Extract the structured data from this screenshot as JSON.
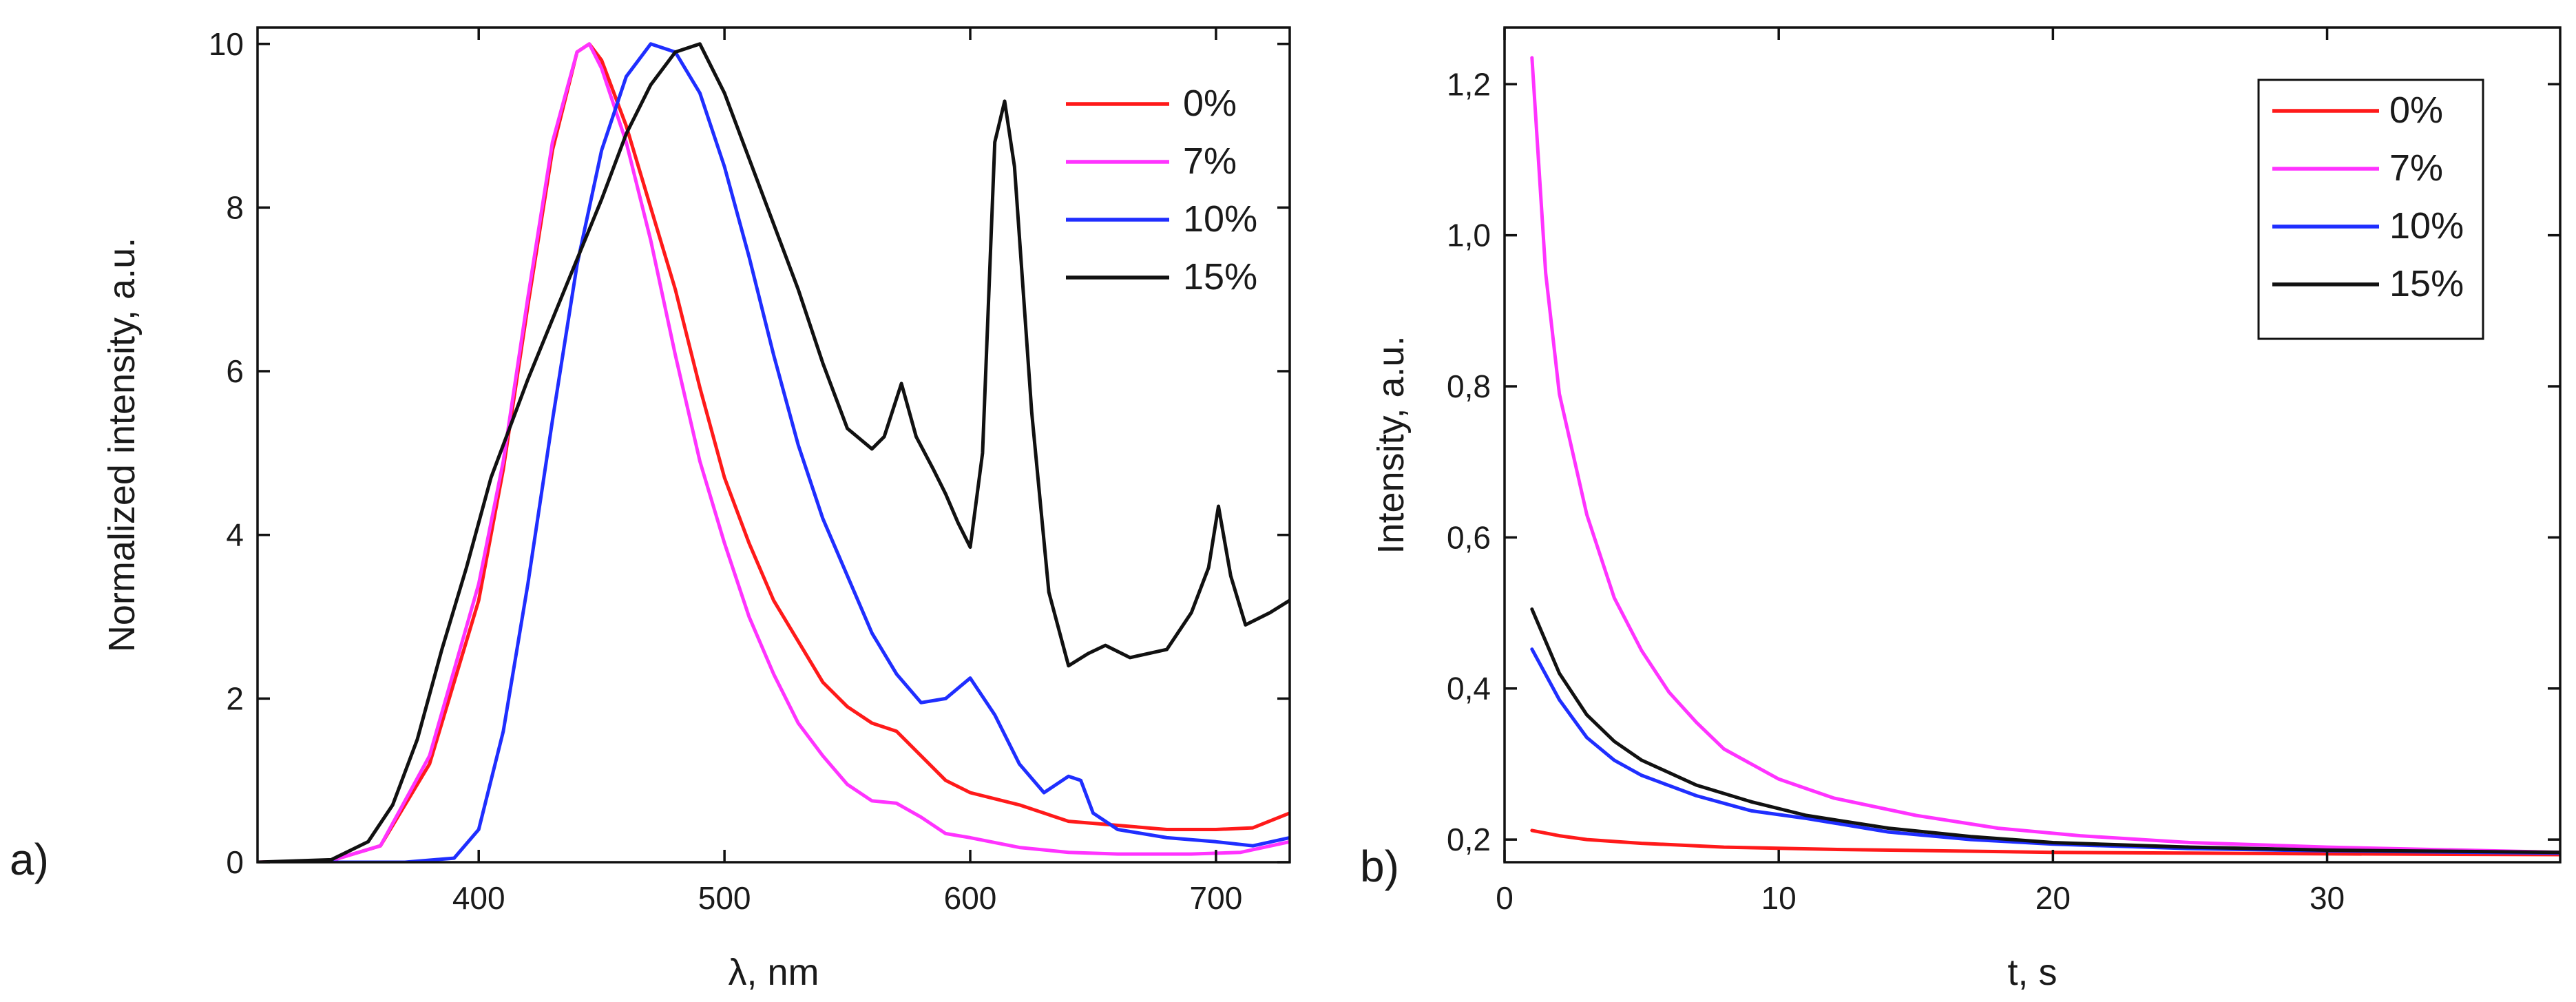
{
  "chart_data": [
    {
      "panel": "a)",
      "type": "line",
      "title": "",
      "xlabel": "λ, nm",
      "ylabel": "Normalized intensity, a.u.",
      "xlim": [
        310,
        730
      ],
      "ylim": [
        0,
        10.2
      ],
      "xticks": [
        400,
        500,
        600,
        700
      ],
      "yticks": [
        0,
        2,
        4,
        6,
        8,
        10
      ],
      "xtick_labels": [
        "400",
        "500",
        "600",
        "700"
      ],
      "ytick_labels": [
        "0",
        "2",
        "4",
        "6",
        "8",
        "10"
      ],
      "legend": "top-right",
      "series": [
        {
          "name": "0%",
          "color": "#ff1a1a",
          "points": [
            [
              310,
              0
            ],
            [
              340,
              0.02
            ],
            [
              360,
              0.2
            ],
            [
              380,
              1.2
            ],
            [
              400,
              3.2
            ],
            [
              410,
              4.8
            ],
            [
              420,
              6.8
            ],
            [
              430,
              8.7
            ],
            [
              440,
              9.9
            ],
            [
              445,
              10
            ],
            [
              450,
              9.8
            ],
            [
              460,
              9.0
            ],
            [
              470,
              8.0
            ],
            [
              480,
              7.0
            ],
            [
              490,
              5.8
            ],
            [
              500,
              4.7
            ],
            [
              510,
              3.9
            ],
            [
              520,
              3.2
            ],
            [
              530,
              2.7
            ],
            [
              540,
              2.2
            ],
            [
              550,
              1.9
            ],
            [
              560,
              1.7
            ],
            [
              570,
              1.6
            ],
            [
              580,
              1.3
            ],
            [
              590,
              1.0
            ],
            [
              600,
              0.85
            ],
            [
              620,
              0.7
            ],
            [
              640,
              0.5
            ],
            [
              660,
              0.45
            ],
            [
              680,
              0.4
            ],
            [
              700,
              0.4
            ],
            [
              715,
              0.42
            ],
            [
              730,
              0.6
            ]
          ]
        },
        {
          "name": "7%",
          "color": "#ff33ff",
          "points": [
            [
              310,
              0
            ],
            [
              340,
              0.02
            ],
            [
              360,
              0.2
            ],
            [
              380,
              1.3
            ],
            [
              400,
              3.4
            ],
            [
              410,
              4.9
            ],
            [
              420,
              6.9
            ],
            [
              430,
              8.8
            ],
            [
              440,
              9.9
            ],
            [
              445,
              10
            ],
            [
              450,
              9.7
            ],
            [
              460,
              8.8
            ],
            [
              470,
              7.6
            ],
            [
              480,
              6.2
            ],
            [
              490,
              4.9
            ],
            [
              500,
              3.9
            ],
            [
              510,
              3.0
            ],
            [
              520,
              2.3
            ],
            [
              530,
              1.7
            ],
            [
              540,
              1.3
            ],
            [
              550,
              0.95
            ],
            [
              560,
              0.75
            ],
            [
              570,
              0.72
            ],
            [
              580,
              0.55
            ],
            [
              590,
              0.35
            ],
            [
              600,
              0.3
            ],
            [
              620,
              0.18
            ],
            [
              640,
              0.12
            ],
            [
              660,
              0.1
            ],
            [
              690,
              0.1
            ],
            [
              710,
              0.12
            ],
            [
              730,
              0.25
            ]
          ]
        },
        {
          "name": "10%",
          "color": "#1f2eff",
          "points": [
            [
              310,
              0
            ],
            [
              370,
              0
            ],
            [
              390,
              0.05
            ],
            [
              400,
              0.4
            ],
            [
              410,
              1.6
            ],
            [
              420,
              3.4
            ],
            [
              430,
              5.4
            ],
            [
              440,
              7.3
            ],
            [
              450,
              8.7
            ],
            [
              460,
              9.6
            ],
            [
              470,
              10
            ],
            [
              480,
              9.9
            ],
            [
              490,
              9.4
            ],
            [
              500,
              8.5
            ],
            [
              510,
              7.4
            ],
            [
              520,
              6.2
            ],
            [
              530,
              5.1
            ],
            [
              540,
              4.2
            ],
            [
              550,
              3.5
            ],
            [
              560,
              2.8
            ],
            [
              570,
              2.3
            ],
            [
              580,
              1.95
            ],
            [
              590,
              2.0
            ],
            [
              600,
              2.25
            ],
            [
              610,
              1.8
            ],
            [
              620,
              1.2
            ],
            [
              630,
              0.85
            ],
            [
              640,
              1.05
            ],
            [
              645,
              1.0
            ],
            [
              650,
              0.6
            ],
            [
              660,
              0.4
            ],
            [
              680,
              0.3
            ],
            [
              700,
              0.25
            ],
            [
              715,
              0.2
            ],
            [
              730,
              0.3
            ]
          ]
        },
        {
          "name": "15%",
          "color": "#111111",
          "points": [
            [
              310,
              0
            ],
            [
              340,
              0.03
            ],
            [
              355,
              0.25
            ],
            [
              365,
              0.7
            ],
            [
              375,
              1.5
            ],
            [
              385,
              2.6
            ],
            [
              395,
              3.6
            ],
            [
              405,
              4.7
            ],
            [
              420,
              5.9
            ],
            [
              435,
              7.0
            ],
            [
              450,
              8.1
            ],
            [
              460,
              8.9
            ],
            [
              470,
              9.5
            ],
            [
              480,
              9.9
            ],
            [
              490,
              10
            ],
            [
              500,
              9.4
            ],
            [
              510,
              8.6
            ],
            [
              520,
              7.8
            ],
            [
              530,
              7.0
            ],
            [
              540,
              6.1
            ],
            [
              550,
              5.3
            ],
            [
              560,
              5.05
            ],
            [
              565,
              5.2
            ],
            [
              572,
              5.85
            ],
            [
              578,
              5.2
            ],
            [
              585,
              4.8
            ],
            [
              590,
              4.5
            ],
            [
              595,
              4.15
            ],
            [
              600,
              3.85
            ],
            [
              605,
              5.0
            ],
            [
              610,
              8.8
            ],
            [
              614,
              9.3
            ],
            [
              618,
              8.5
            ],
            [
              625,
              5.5
            ],
            [
              632,
              3.3
            ],
            [
              640,
              2.4
            ],
            [
              648,
              2.55
            ],
            [
              655,
              2.65
            ],
            [
              665,
              2.5
            ],
            [
              680,
              2.6
            ],
            [
              690,
              3.05
            ],
            [
              697,
              3.6
            ],
            [
              701,
              4.35
            ],
            [
              706,
              3.5
            ],
            [
              712,
              2.9
            ],
            [
              722,
              3.05
            ],
            [
              730,
              3.2
            ]
          ]
        }
      ]
    },
    {
      "panel": "b)",
      "type": "line",
      "title": "",
      "xlabel": "t, s",
      "ylabel": "Intensity, a.u.",
      "xlim": [
        0,
        38.5
      ],
      "ylim": [
        0.17,
        1.275
      ],
      "xticks": [
        0,
        10,
        20,
        30
      ],
      "yticks": [
        0.2,
        0.4,
        0.6,
        0.8,
        1.0,
        1.2
      ],
      "xtick_labels": [
        "0",
        "10",
        "20",
        "30"
      ],
      "ytick_labels": [
        "0,2",
        "0,4",
        "0,6",
        "0,8",
        "1,0",
        "1,2"
      ],
      "legend": "top-right",
      "series": [
        {
          "name": "0%",
          "color": "#ff1a1a",
          "points": [
            [
              1,
              0.212
            ],
            [
              2,
              0.205
            ],
            [
              3,
              0.2
            ],
            [
              5,
              0.195
            ],
            [
              8,
              0.19
            ],
            [
              12,
              0.187
            ],
            [
              16,
              0.185
            ],
            [
              20,
              0.183
            ],
            [
              25,
              0.182
            ],
            [
              30,
              0.181
            ],
            [
              38.5,
              0.18
            ]
          ]
        },
        {
          "name": "7%",
          "color": "#ff33ff",
          "points": [
            [
              1,
              1.235
            ],
            [
              1.5,
              0.95
            ],
            [
              2,
              0.79
            ],
            [
              3,
              0.63
            ],
            [
              4,
              0.52
            ],
            [
              5,
              0.45
            ],
            [
              6,
              0.395
            ],
            [
              7,
              0.355
            ],
            [
              8,
              0.32
            ],
            [
              10,
              0.28
            ],
            [
              12,
              0.255
            ],
            [
              15,
              0.232
            ],
            [
              18,
              0.215
            ],
            [
              21,
              0.205
            ],
            [
              25,
              0.196
            ],
            [
              30,
              0.19
            ],
            [
              38.5,
              0.183
            ]
          ]
        },
        {
          "name": "10%",
          "color": "#1f2eff",
          "points": [
            [
              1,
              0.452
            ],
            [
              2,
              0.385
            ],
            [
              3,
              0.335
            ],
            [
              4,
              0.305
            ],
            [
              5,
              0.285
            ],
            [
              7,
              0.258
            ],
            [
              9,
              0.238
            ],
            [
              11,
              0.228
            ],
            [
              14,
              0.21
            ],
            [
              17,
              0.2
            ],
            [
              20,
              0.194
            ],
            [
              25,
              0.188
            ],
            [
              30,
              0.185
            ],
            [
              38.5,
              0.182
            ]
          ]
        },
        {
          "name": "15%",
          "color": "#111111",
          "points": [
            [
              1,
              0.505
            ],
            [
              2,
              0.42
            ],
            [
              3,
              0.365
            ],
            [
              4,
              0.33
            ],
            [
              5,
              0.305
            ],
            [
              7,
              0.272
            ],
            [
              9,
              0.25
            ],
            [
              11,
              0.232
            ],
            [
              14,
              0.215
            ],
            [
              17,
              0.204
            ],
            [
              20,
              0.196
            ],
            [
              25,
              0.19
            ],
            [
              30,
              0.186
            ],
            [
              38.5,
              0.183
            ]
          ]
        }
      ]
    }
  ]
}
